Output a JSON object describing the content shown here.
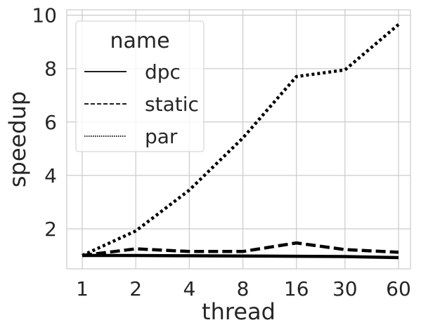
{
  "chart_data": {
    "type": "line",
    "xlabel": "thread",
    "ylabel": "speedup",
    "x": [
      1,
      2,
      4,
      8,
      16,
      30,
      60
    ],
    "x_tick_labels": [
      "1",
      "2",
      "4",
      "8",
      "16",
      "30",
      "60"
    ],
    "x_scale": "log2",
    "y_ticks": [
      2,
      4,
      6,
      8,
      10
    ],
    "ylim": [
      0.5,
      10.2
    ],
    "grid": true,
    "legend": {
      "title": "name",
      "placement": "top-left"
    },
    "series": [
      {
        "name": "dpc",
        "style": "solid",
        "color": "#000000",
        "values": [
          1.0,
          1.0,
          0.99,
          0.98,
          0.97,
          0.96,
          0.92
        ]
      },
      {
        "name": "static",
        "style": "dashed",
        "color": "#000000",
        "values": [
          1.0,
          1.25,
          1.15,
          1.15,
          1.47,
          1.22,
          1.12
        ]
      },
      {
        "name": "par",
        "style": "dotted",
        "color": "#000000",
        "values": [
          1.0,
          1.92,
          3.45,
          5.4,
          7.7,
          7.95,
          9.65
        ]
      }
    ]
  }
}
